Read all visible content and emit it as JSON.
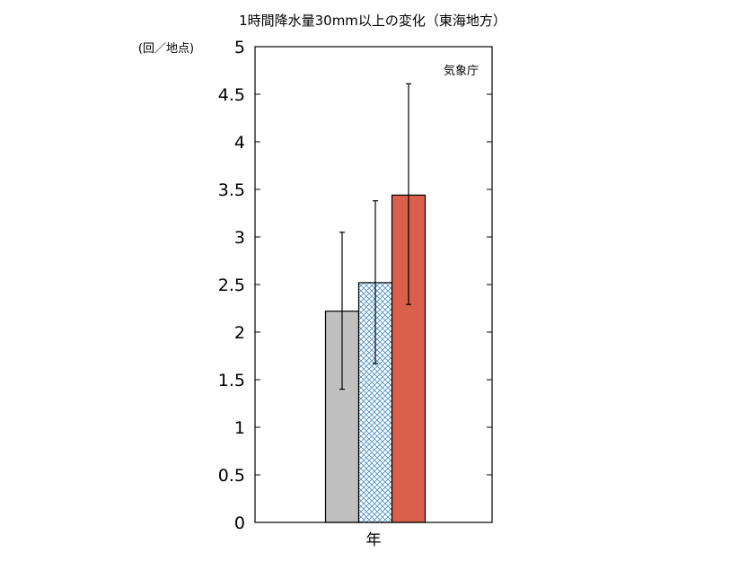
{
  "chart_data": {
    "type": "bar",
    "title": "1時間降水量30mm以上の変化（東海地方）",
    "ylabel": "(回／地点)",
    "annotation": "気象庁",
    "categories": [
      "年"
    ],
    "ylim": [
      0,
      5
    ],
    "yticks": [
      "0",
      "0.5",
      "1",
      "1.5",
      "2",
      "2.5",
      "3",
      "3.5",
      "4",
      "4.5",
      "5"
    ],
    "ytick_values": [
      0,
      0.5,
      1,
      1.5,
      2,
      2.5,
      3,
      3.5,
      4,
      4.5,
      5
    ],
    "grid": false,
    "series": [
      {
        "values": [
          2.22
        ],
        "error_low": [
          1.4
        ],
        "error_high": [
          3.05
        ],
        "color": "#c0c0c0",
        "pattern": "solid"
      },
      {
        "values": [
          2.52
        ],
        "error_low": [
          1.67
        ],
        "error_high": [
          3.38
        ],
        "color": "#4a90c8",
        "pattern": "crosshatch"
      },
      {
        "values": [
          3.44
        ],
        "error_low": [
          2.29
        ],
        "error_high": [
          4.61
        ],
        "color": "#d9604a",
        "pattern": "solid"
      }
    ]
  }
}
